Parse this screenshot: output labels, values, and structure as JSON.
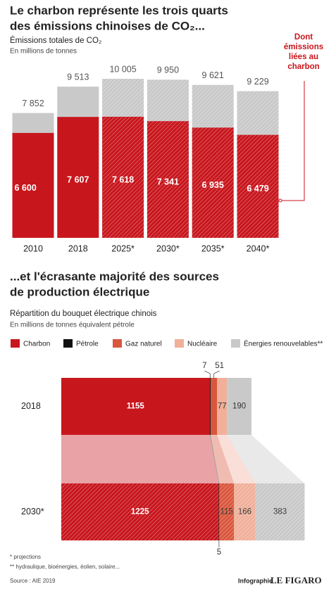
{
  "chart_data": [
    {
      "type": "bar",
      "title": [
        "Le charbon représente les trois quarts",
        "des émissions chinoises de CO₂..."
      ],
      "subtitle": "Émissions totales de CO₂",
      "unit": "En millions de tonnes",
      "categories": [
        "2010",
        "2018",
        "2025*",
        "2030*",
        "2035*",
        "2040*"
      ],
      "totals": {
        "color": "#c9c9c9",
        "values": [
          7852,
          9513,
          10005,
          9950,
          9621,
          9229
        ],
        "value_labels": [
          "7 852",
          "9 513",
          "10 005",
          "9 950",
          "9 621",
          "9 229"
        ]
      },
      "series": [
        {
          "name": "Dont émissions liées au charbon",
          "color": "#c8161d",
          "values": [
            6600,
            7607,
            7618,
            7341,
            6935,
            6479
          ],
          "value_labels": [
            "6 600",
            "7 607",
            "7 618",
            "7 341",
            "6 935",
            "6 479"
          ]
        }
      ]
    },
    {
      "type": "hbar",
      "title": [
        "...et l'écrasante majorité des sources",
        "de production électrique"
      ],
      "subtitle": "Répartition du bouquet électrique chinois",
      "unit": "En millions de tonnes équivalent pétrole",
      "categories": [
        "2018",
        "2030*"
      ],
      "series": [
        {
          "name": "Charbon",
          "color": "#c8161d",
          "values": [
            1155,
            1225
          ]
        },
        {
          "name": "Pétrole",
          "color": "#111111",
          "values": [
            7,
            5
          ]
        },
        {
          "name": "Gaz naturel",
          "color": "#d9573c",
          "values": [
            51,
            115
          ]
        },
        {
          "name": "Nucléaire",
          "color": "#f0b09a",
          "values": [
            77,
            166
          ]
        },
        {
          "name": "Énergies renouvelables**",
          "color": "#c9c9c9",
          "values": [
            190,
            383
          ]
        }
      ]
    }
  ],
  "footnotes": [
    "* projections",
    "** hydraulique, bioénergies, éolien, solaire..."
  ],
  "source": "Source : AIE 2019",
  "credit": [
    "Infographie",
    "LE FIGARO"
  ]
}
